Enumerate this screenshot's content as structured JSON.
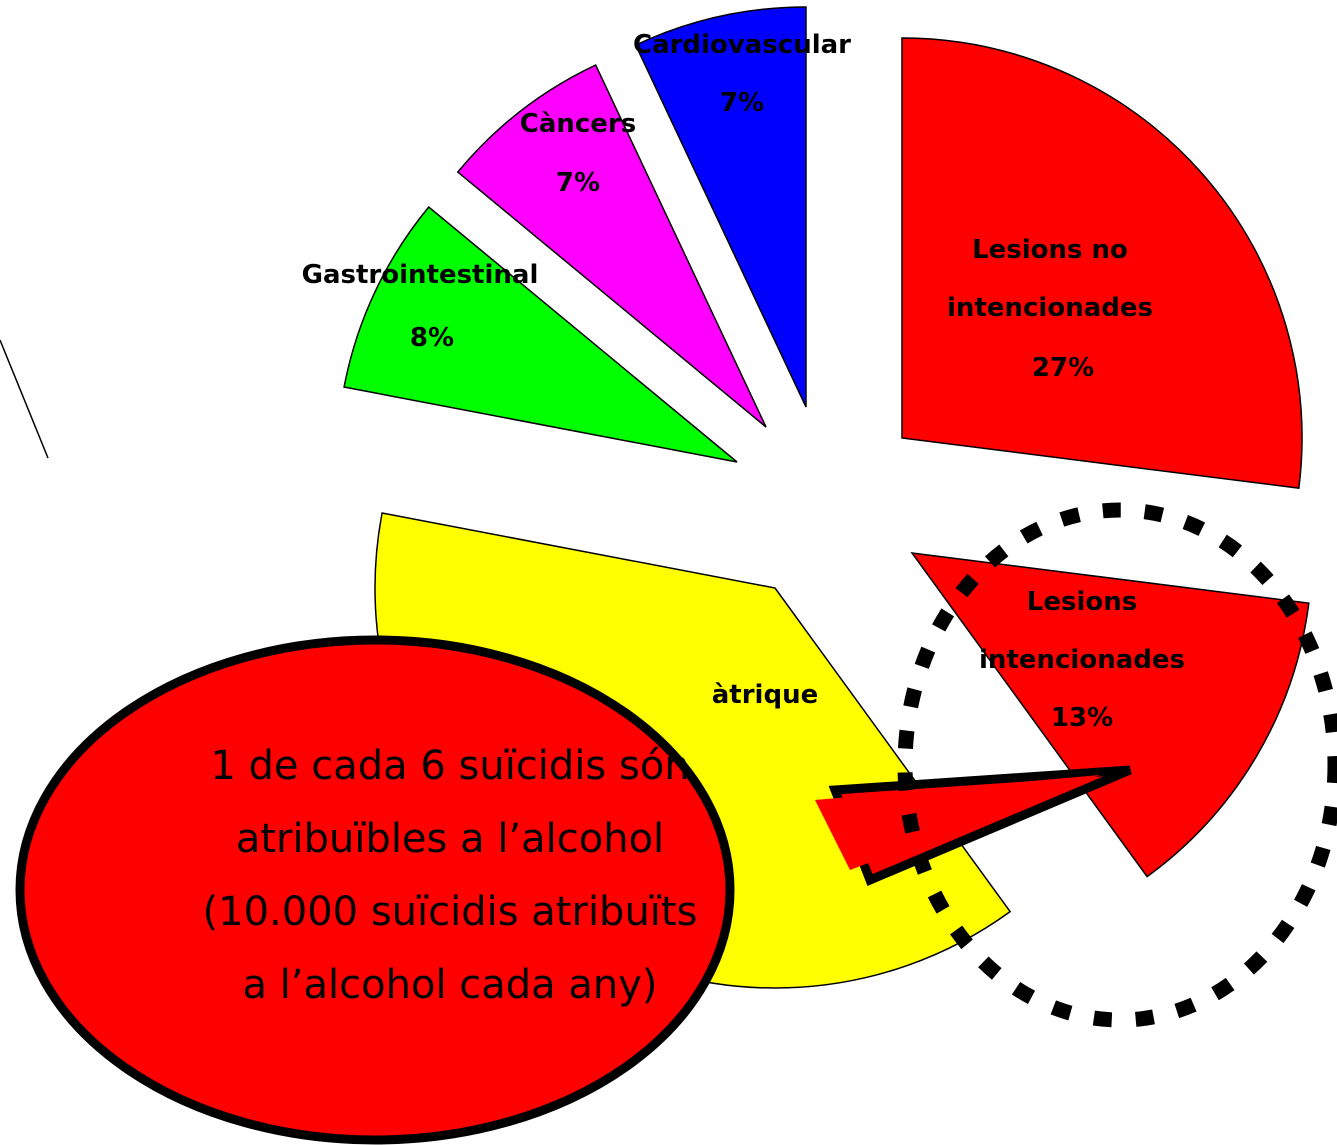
{
  "chart_data": {
    "type": "pie",
    "categories": [
      "Lesions no intencionades",
      "Lesions intencionades",
      "àtrique",
      "Gastrointestinal",
      "Càncers",
      "Cardiovascular"
    ],
    "values": [
      27,
      13,
      38,
      8,
      7,
      7
    ],
    "value_labels": [
      "27%",
      "13%",
      null,
      "8%",
      "7%",
      "7%"
    ],
    "colors": [
      "#ff0000",
      "#ff0000",
      "#ffff00",
      "#00ff00",
      "#ff00ff",
      "#0000ff"
    ],
    "annotation": "1 de cada 6 suïcidis són atribuïbles a l’alcohol (10.000 suïcidis atribuïts a l’alcohol cada any)"
  }
}
